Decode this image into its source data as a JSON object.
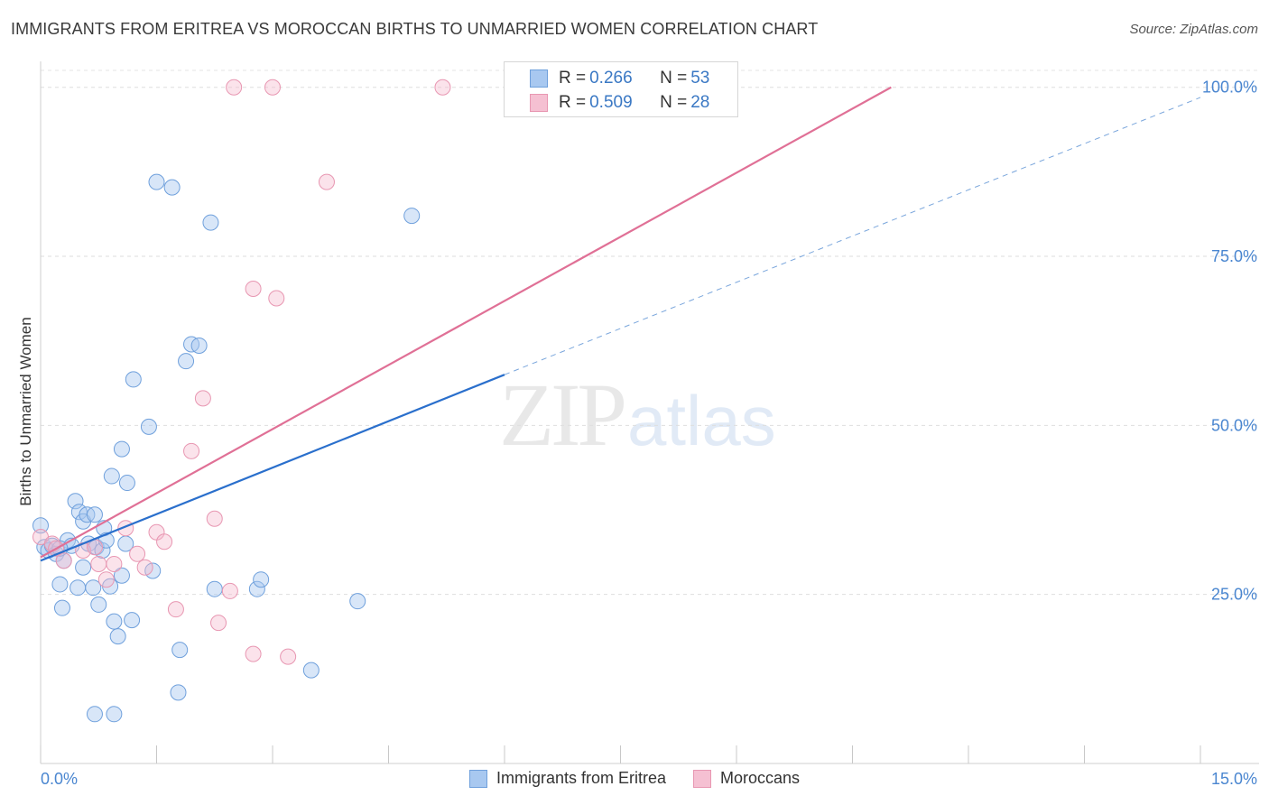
{
  "title": "IMMIGRANTS FROM ERITREA VS MOROCCAN BIRTHS TO UNMARRIED WOMEN CORRELATION CHART",
  "source": "Source: ZipAtlas.com",
  "watermark": {
    "part1": "ZIP",
    "part2": "atlas"
  },
  "stats_legend": [
    {
      "r_label": "R = ",
      "r_value": "0.266",
      "n_label": "N = ",
      "n_value": "53",
      "color": "#a8c8f0"
    },
    {
      "r_label": "R = ",
      "r_value": "0.509",
      "n_label": "N = ",
      "n_value": "28",
      "color": "#f5b8cc"
    }
  ],
  "bottom_legend": [
    {
      "label": "Immigrants from Eritrea",
      "color": "#a8c8f0"
    },
    {
      "label": "Moroccans",
      "color": "#f5b8cc"
    }
  ],
  "colors": {
    "blue_line": "#2a6fcc",
    "pink_line": "#e07096",
    "blue_fill": "#a8c8f0",
    "blue_stroke": "#6fa0dc",
    "pink_fill": "#f5c0d2",
    "pink_stroke": "#e897b2",
    "tick_label": "#4a86d0"
  },
  "chart_data": {
    "type": "scatter",
    "title": "IMMIGRANTS FROM ERITREA VS MOROCCAN BIRTHS TO UNMARRIED WOMEN CORRELATION CHART",
    "xlabel": "",
    "ylabel": "Births to Unmarried Women",
    "xlim": [
      0,
      15
    ],
    "ylim": [
      0,
      102.5
    ],
    "x_tick_labels": [
      {
        "value": 0,
        "label": "0.0%"
      },
      {
        "value": 15,
        "label": "15.0%"
      }
    ],
    "y_tick_labels": [
      {
        "value": 25,
        "label": "25.0%"
      },
      {
        "value": 50,
        "label": "50.0%"
      },
      {
        "value": 75,
        "label": "75.0%"
      },
      {
        "value": 100,
        "label": "100.0%"
      }
    ],
    "grid": true,
    "legend_position": "top-center",
    "series": [
      {
        "name": "Immigrants from Eritrea",
        "color": "#a8c8f0",
        "points": [
          [
            0.0,
            35.2
          ],
          [
            0.05,
            32.0
          ],
          [
            0.1,
            31.5
          ],
          [
            0.15,
            32.2
          ],
          [
            0.2,
            31.0
          ],
          [
            0.25,
            26.5
          ],
          [
            0.28,
            23.0
          ],
          [
            0.3,
            30.0
          ],
          [
            0.35,
            33.0
          ],
          [
            0.4,
            32.2
          ],
          [
            0.45,
            38.8
          ],
          [
            0.48,
            26.0
          ],
          [
            0.5,
            37.2
          ],
          [
            0.55,
            35.8
          ],
          [
            0.6,
            36.8
          ],
          [
            0.62,
            32.5
          ],
          [
            0.68,
            26.0
          ],
          [
            0.7,
            36.8
          ],
          [
            0.72,
            32.0
          ],
          [
            0.75,
            23.5
          ],
          [
            0.8,
            31.5
          ],
          [
            0.82,
            34.8
          ],
          [
            0.85,
            33.0
          ],
          [
            0.9,
            26.2
          ],
          [
            0.92,
            42.5
          ],
          [
            0.95,
            21.0
          ],
          [
            1.0,
            18.8
          ],
          [
            1.05,
            27.8
          ],
          [
            1.1,
            32.5
          ],
          [
            1.12,
            41.5
          ],
          [
            1.18,
            21.2
          ],
          [
            1.2,
            56.8
          ],
          [
            1.4,
            49.8
          ],
          [
            1.45,
            28.5
          ],
          [
            1.5,
            86.0
          ],
          [
            1.7,
            85.2
          ],
          [
            1.78,
            10.5
          ],
          [
            1.8,
            16.8
          ],
          [
            1.88,
            59.5
          ],
          [
            1.95,
            62.0
          ],
          [
            2.05,
            61.8
          ],
          [
            2.2,
            80.0
          ],
          [
            2.25,
            25.8
          ],
          [
            2.8,
            25.8
          ],
          [
            2.85,
            27.2
          ],
          [
            3.5,
            13.8
          ],
          [
            4.1,
            24.0
          ],
          [
            4.8,
            81.0
          ],
          [
            0.7,
            7.3
          ],
          [
            0.95,
            7.3
          ],
          [
            0.55,
            29.0
          ],
          [
            1.05,
            46.5
          ],
          [
            0.25,
            31.8
          ]
        ]
      },
      {
        "name": "Moroccans",
        "color": "#f5b8cc",
        "points": [
          [
            0.0,
            33.5
          ],
          [
            0.15,
            32.5
          ],
          [
            0.2,
            31.8
          ],
          [
            0.3,
            30.0
          ],
          [
            0.55,
            31.5
          ],
          [
            0.7,
            32.0
          ],
          [
            0.75,
            29.5
          ],
          [
            0.85,
            27.2
          ],
          [
            0.95,
            29.5
          ],
          [
            1.1,
            34.8
          ],
          [
            1.25,
            31.0
          ],
          [
            1.35,
            29.0
          ],
          [
            1.5,
            34.2
          ],
          [
            1.6,
            32.8
          ],
          [
            1.75,
            22.8
          ],
          [
            1.95,
            46.2
          ],
          [
            2.1,
            54.0
          ],
          [
            2.25,
            36.2
          ],
          [
            2.3,
            20.8
          ],
          [
            2.45,
            25.5
          ],
          [
            2.5,
            100.0
          ],
          [
            2.75,
            16.2
          ],
          [
            2.75,
            70.2
          ],
          [
            3.0,
            100.0
          ],
          [
            3.05,
            68.8
          ],
          [
            3.2,
            15.8
          ],
          [
            3.7,
            86.0
          ],
          [
            5.2,
            100.0
          ]
        ]
      }
    ],
    "trend_lines": [
      {
        "series": "Immigrants from Eritrea",
        "solid": {
          "x": [
            0,
            6.0
          ],
          "y": [
            30.0,
            57.5
          ]
        },
        "dashed": {
          "x": [
            6.0,
            15
          ],
          "y": [
            57.5,
            98.5
          ]
        }
      },
      {
        "series": "Moroccans",
        "solid": {
          "x": [
            0,
            11.0
          ],
          "y": [
            30.5,
            100.0
          ]
        }
      }
    ]
  }
}
